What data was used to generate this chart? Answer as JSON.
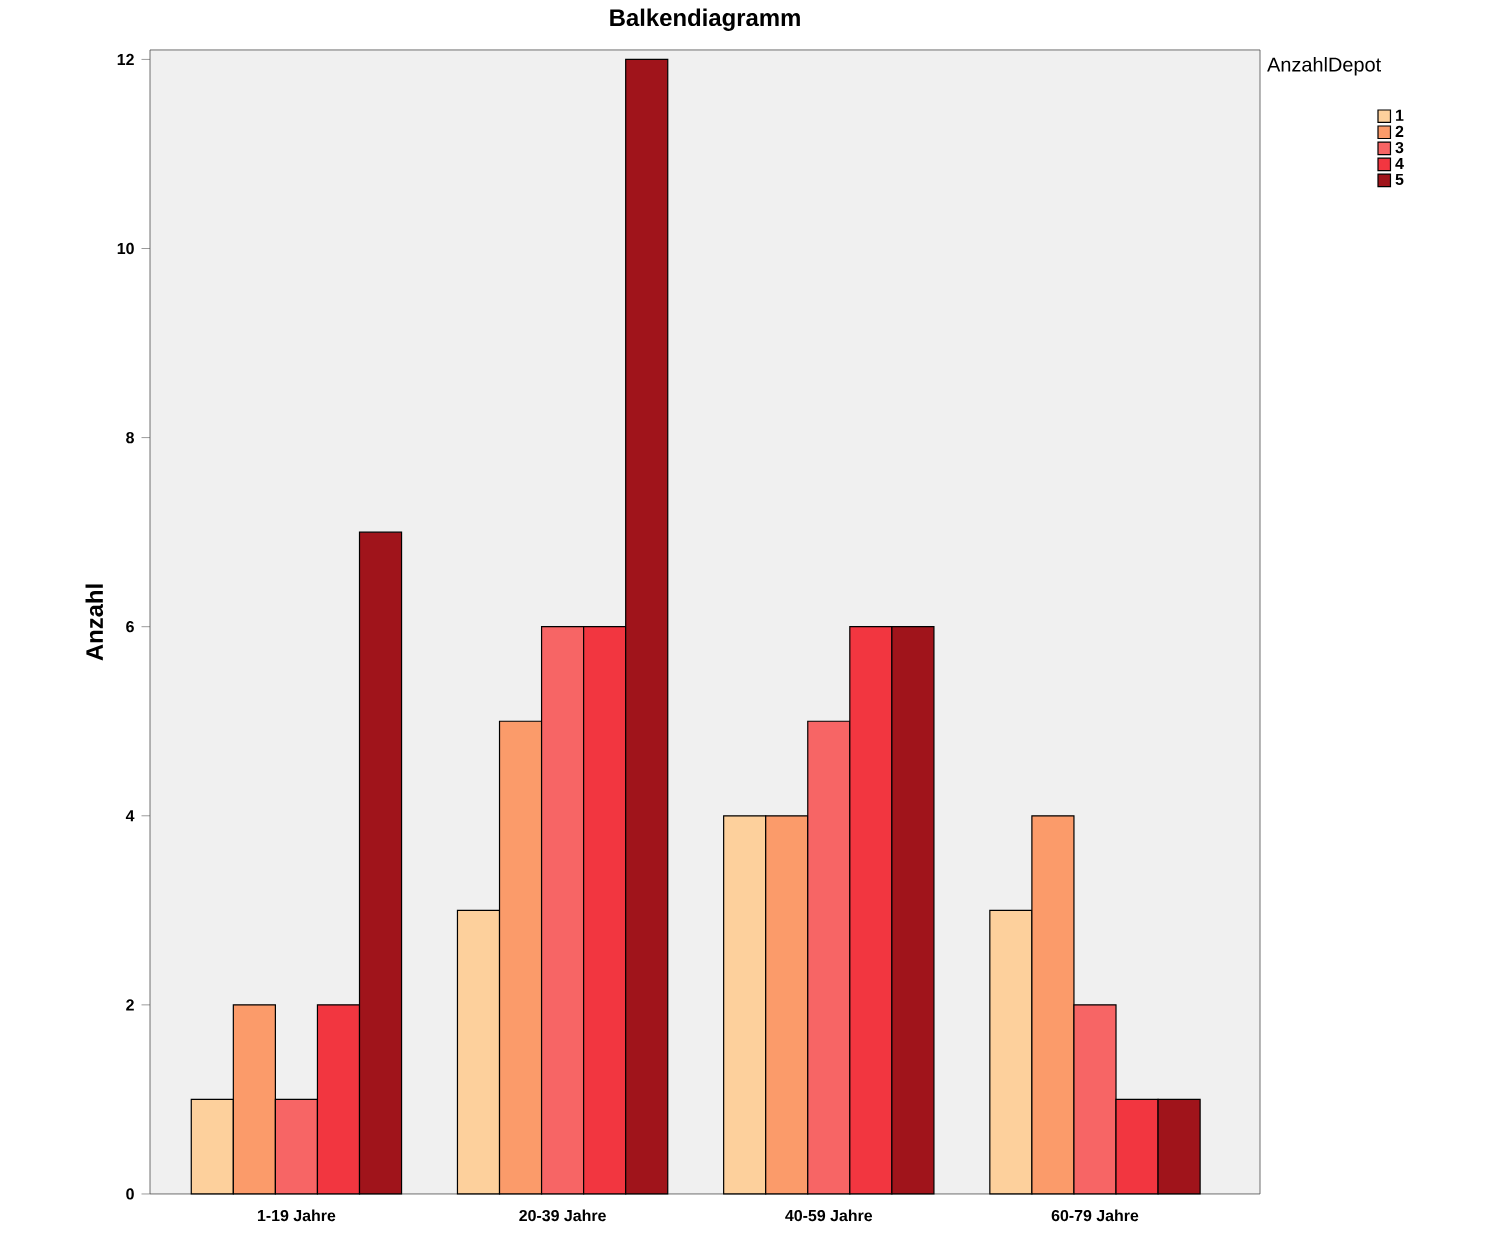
{
  "chart_data": {
    "type": "bar",
    "title": "Balkendiagramm",
    "ylabel": "Anzahl",
    "legend_title": "AnzahlDepot",
    "categories": [
      "1-19 Jahre",
      "20-39 Jahre",
      "40-59 Jahre",
      "60-79 Jahre"
    ],
    "series": [
      {
        "name": "1",
        "color": "#fdd09c",
        "values": [
          1,
          3,
          4,
          3
        ]
      },
      {
        "name": "2",
        "color": "#fb9b6a",
        "values": [
          2,
          5,
          4,
          4
        ]
      },
      {
        "name": "3",
        "color": "#f76565",
        "values": [
          1,
          6,
          5,
          2
        ]
      },
      {
        "name": "4",
        "color": "#f23640",
        "values": [
          2,
          6,
          6,
          1
        ]
      },
      {
        "name": "5",
        "color": "#a0141b",
        "values": [
          7,
          12,
          6,
          1
        ]
      }
    ],
    "ylim": [
      0,
      12.1
    ],
    "yticks": [
      0,
      2,
      4,
      6,
      8,
      10,
      12
    ],
    "legend": "top right"
  }
}
